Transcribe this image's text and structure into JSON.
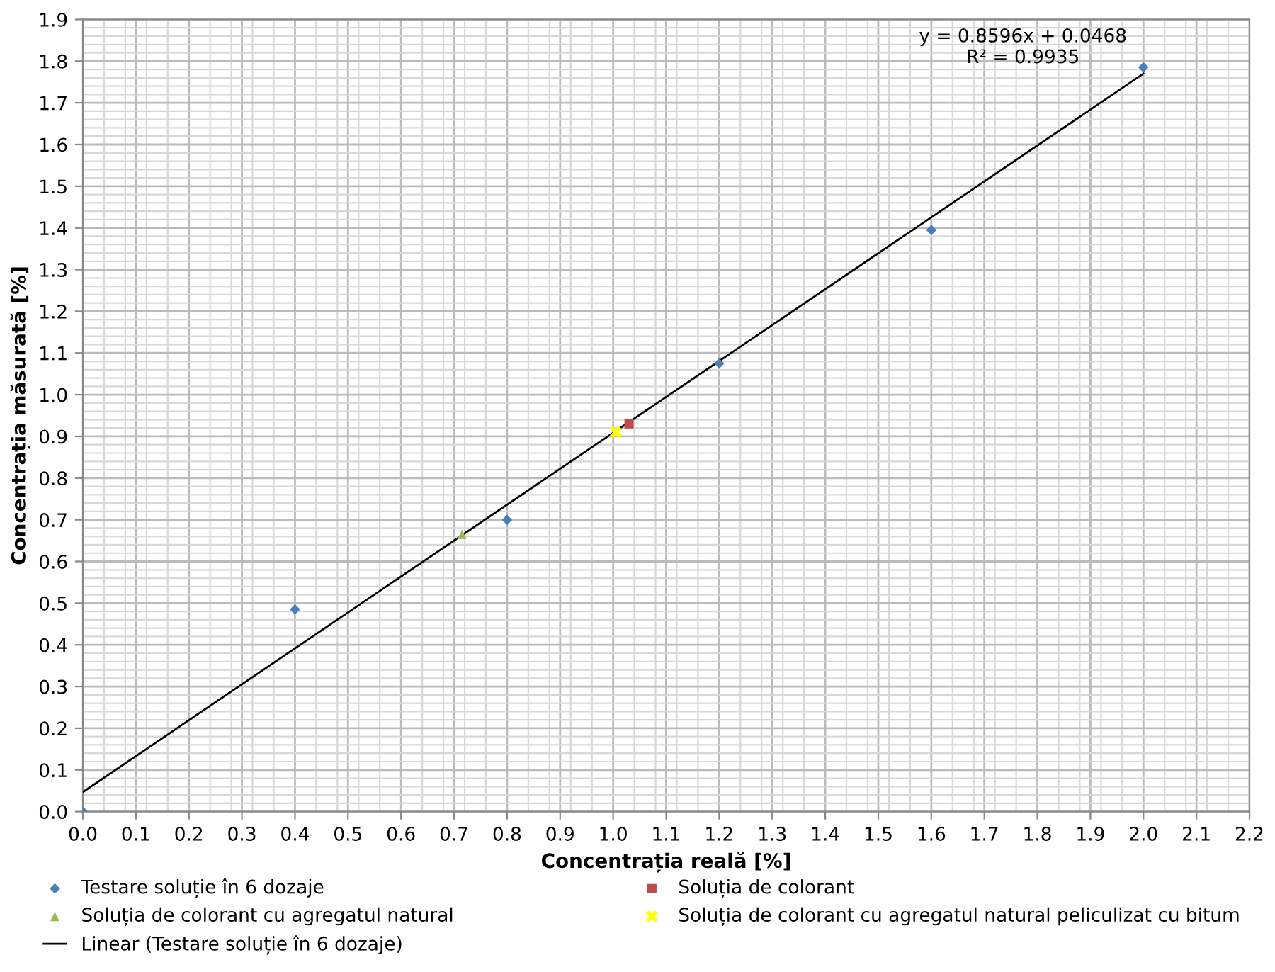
{
  "chart_data": {
    "type": "scatter",
    "xlabel": "Concentrația reală [%]",
    "ylabel": "Concentrația măsurată [%]",
    "series": [
      {
        "name": "Testare soluție în 6 dozaje",
        "color": "#4a7ebb",
        "marker": "diamond",
        "x": [
          0,
          0.4,
          0.8,
          1.2,
          1.6,
          2.0
        ],
        "values": [
          0,
          0.485,
          0.7,
          1.075,
          1.395,
          1.785
        ]
      },
      {
        "name": "Soluția de colorant",
        "color": "#be4b48",
        "marker": "square",
        "x": [
          1.03
        ],
        "values": [
          0.93
        ]
      },
      {
        "name": "Soluția de colorant cu agregatul natural",
        "color": "#98b954",
        "marker": "triangle",
        "x": [
          0.715
        ],
        "values": [
          0.665
        ]
      },
      {
        "name": "Soluția de colorant cu agregatul natural peliculizat cu bitum",
        "color": "#ffff00",
        "marker": "cross",
        "x": [
          1.005
        ],
        "values": [
          0.91
        ]
      },
      {
        "name": "Linear (Testare soluție în 6 dozaje)",
        "type": "line",
        "color": "#000000",
        "marker": "none",
        "x": [
          0,
          2.0
        ],
        "values": [
          0.047,
          1.77
        ]
      }
    ],
    "annotations": [
      "y = 0.8596x + 0.0468\nR² = 0.9935"
    ],
    "xlim": [
      0,
      2.2
    ],
    "ylim": [
      0,
      1.9
    ],
    "xticks": [
      {
        "value": 0,
        "label": "0.0"
      },
      0.1,
      0.2,
      0.3,
      0.4,
      0.5,
      0.6,
      0.7,
      0.8,
      0.9,
      {
        "value": 1,
        "label": "1.0"
      },
      1.1,
      1.2,
      1.3,
      1.4,
      1.5,
      1.6,
      1.7,
      1.8,
      1.9,
      {
        "value": 2,
        "label": "2.0"
      },
      2.1,
      2.2
    ],
    "yticks": [
      {
        "value": 0,
        "label": "0.0"
      },
      0.1,
      0.2,
      0.3,
      0.4,
      0.5,
      0.6,
      0.7,
      0.8,
      0.9,
      {
        "value": 1,
        "label": "1.0"
      },
      1.1,
      1.2,
      1.3,
      1.4,
      1.5,
      1.6,
      1.7,
      1.8,
      1.9
    ],
    "grid": true,
    "legend": "bottom"
  }
}
